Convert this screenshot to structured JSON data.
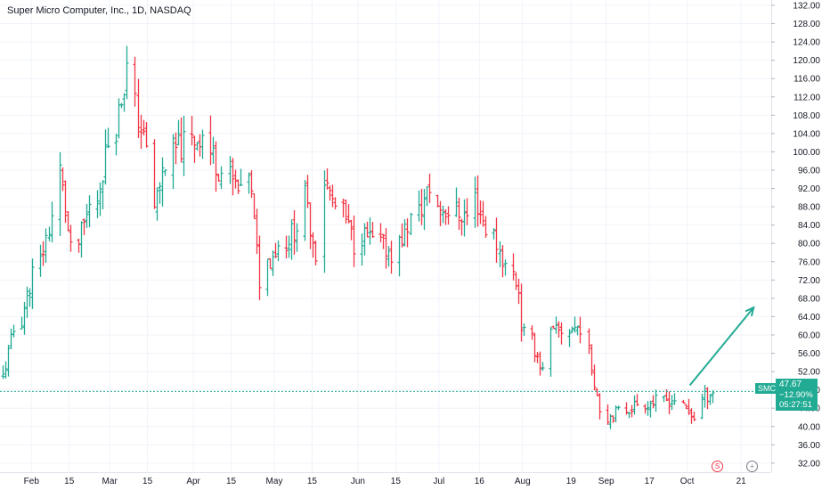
{
  "header": {
    "title": "Super Micro Computer, Inc., 1D, NASDAQ"
  },
  "price_scale": {
    "symbol": "SMCI",
    "price": "47.67",
    "change": "−12.90%",
    "countdown": "05:27:51"
  },
  "events": {
    "split_label": "S",
    "plus_label": "+"
  },
  "colors": {
    "up": "#22ab94",
    "down": "#f23645",
    "arrow": "#22ab94",
    "grid": "#f0f3fa",
    "current_line": "#22ab94"
  },
  "chart_data": {
    "type": "ohlc",
    "ylim": [
      30,
      133
    ],
    "y_ticks": [
      32,
      36,
      40,
      44,
      48,
      52,
      56,
      60,
      64,
      68,
      72,
      76,
      80,
      84,
      88,
      92,
      96,
      100,
      104,
      108,
      112,
      116,
      120,
      124,
      128,
      132
    ],
    "x_ticks": [
      "Feb",
      "15",
      "Mar",
      "15",
      "Apr",
      "15",
      "May",
      "15",
      "Jun",
      "15",
      "Jul",
      "16",
      "Aug",
      "19",
      "Sep",
      "17",
      "Oct",
      "21"
    ],
    "current_price": 47.67,
    "segments": [
      {
        "from": "2024-01-22",
        "to": "2024-02-09",
        "start": 51,
        "end": 86
      },
      {
        "from": "2024-02-12",
        "to": "2024-02-16",
        "start": 96,
        "end": 78
      },
      {
        "from": "2024-02-19",
        "to": "2024-02-23",
        "start": 80,
        "end": 88
      },
      {
        "from": "2024-02-26",
        "to": "2024-03-08",
        "start": 90,
        "end": 118
      },
      {
        "from": "2024-03-11",
        "to": "2024-03-15",
        "start": 110,
        "end": 100
      },
      {
        "from": "2024-03-18",
        "to": "2024-03-22",
        "start": 88,
        "end": 98
      },
      {
        "from": "2024-03-25",
        "to": "2024-04-05",
        "start": 100,
        "end": 104
      },
      {
        "from": "2024-04-08",
        "to": "2024-04-19",
        "start": 100,
        "end": 90
      },
      {
        "from": "2024-04-22",
        "to": "2024-04-26",
        "start": 96,
        "end": 72
      },
      {
        "from": "2024-04-29",
        "to": "2024-05-10",
        "start": 76,
        "end": 84
      },
      {
        "from": "2024-05-13",
        "to": "2024-05-17",
        "start": 90,
        "end": 78
      },
      {
        "from": "2024-05-20",
        "to": "2024-05-31",
        "start": 94,
        "end": 80
      },
      {
        "from": "2024-06-03",
        "to": "2024-06-14",
        "start": 82,
        "end": 78
      },
      {
        "from": "2024-06-17",
        "to": "2024-06-28",
        "start": 80,
        "end": 92
      },
      {
        "from": "2024-07-01",
        "to": "2024-07-12",
        "start": 88,
        "end": 86
      },
      {
        "from": "2024-07-15",
        "to": "2024-07-31",
        "start": 90,
        "end": 70
      },
      {
        "from": "2024-08-01",
        "to": "2024-08-09",
        "start": 62,
        "end": 52
      },
      {
        "from": "2024-08-12",
        "to": "2024-08-23",
        "start": 60,
        "end": 62
      },
      {
        "from": "2024-08-26",
        "to": "2024-08-30",
        "start": 56,
        "end": 44
      },
      {
        "from": "2024-09-02",
        "to": "2024-09-13",
        "start": 42,
        "end": 45
      },
      {
        "from": "2024-09-16",
        "to": "2024-09-27",
        "start": 45,
        "end": 46
      },
      {
        "from": "2024-09-30",
        "to": "2024-10-04",
        "start": 44,
        "end": 42
      },
      {
        "from": "2024-10-07",
        "to": "2024-10-11",
        "start": 46,
        "end": 47.67
      }
    ],
    "projection_arrow": {
      "from": [
        "2024-09-30",
        49
      ],
      "to": [
        "2024-10-23",
        66
      ]
    }
  }
}
